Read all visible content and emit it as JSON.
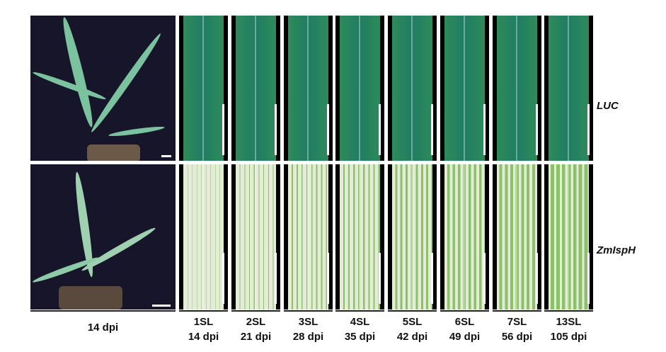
{
  "rows": [
    {
      "label": "LUC",
      "leaf_colors": [
        "#2f8a5a",
        "#1f7d63"
      ]
    },
    {
      "label": "ZmIspH",
      "leaf_colors": [
        "#e4ecd8",
        "#8cc06a"
      ]
    }
  ],
  "plant_label": "14 dpi",
  "columns": [
    {
      "leaf": "1SL",
      "dpi": "14 dpi"
    },
    {
      "leaf": "2SL",
      "dpi": "21 dpi"
    },
    {
      "leaf": "3SL",
      "dpi": "28 dpi"
    },
    {
      "leaf": "4SL",
      "dpi": "35 dpi"
    },
    {
      "leaf": "5SL",
      "dpi": "42 dpi"
    },
    {
      "leaf": "6SL",
      "dpi": "49 dpi"
    },
    {
      "leaf": "7SL",
      "dpi": "56 dpi"
    },
    {
      "leaf": "13SL",
      "dpi": "105 dpi"
    }
  ]
}
